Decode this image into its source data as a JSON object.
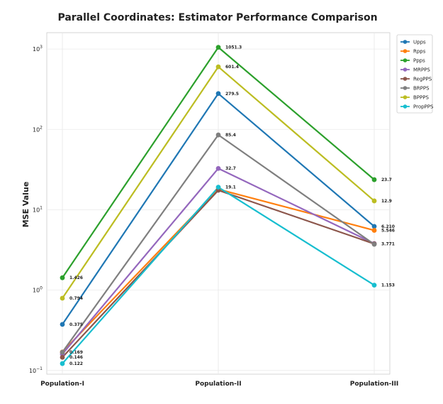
{
  "chart_data": {
    "type": "line",
    "title": "Parallel Coordinates: Estimator Performance Comparison",
    "ylabel": "MSE Value",
    "xlabel": "",
    "yscale": "log",
    "ylim": [
      0.09,
      1600
    ],
    "yticks": [
      {
        "value": 0.1,
        "base": "10",
        "exp": "−1"
      },
      {
        "value": 1,
        "base": "10",
        "exp": "0"
      },
      {
        "value": 10,
        "base": "10",
        "exp": "1"
      },
      {
        "value": 100,
        "base": "10",
        "exp": "2"
      },
      {
        "value": 1000,
        "base": "10",
        "exp": "3"
      }
    ],
    "categories": [
      "Population-I",
      "Population-II",
      "Population-III"
    ],
    "grid": true,
    "legend_position": "top-right",
    "series": [
      {
        "name": "Upps",
        "color": "#1f77b4",
        "values": [
          0.375,
          279.5,
          6.21
        ],
        "labels": [
          "0.375",
          "279.5",
          "6.210"
        ]
      },
      {
        "name": "Rpps",
        "color": "#ff7f0e",
        "values": [
          0.17,
          18.0,
          5.546
        ],
        "labels": [
          "",
          "",
          "5.546"
        ]
      },
      {
        "name": "Ppps",
        "color": "#2ca02c",
        "values": [
          1.426,
          1051.3,
          23.7
        ],
        "labels": [
          "1.426",
          "1051.3",
          "23.7"
        ]
      },
      {
        "name": "MRPPS",
        "color": "#9467bd",
        "values": [
          0.16,
          32.7,
          3.8
        ],
        "labels": [
          "",
          "32.7",
          ""
        ]
      },
      {
        "name": "RegPPS",
        "color": "#8c564b",
        "values": [
          0.146,
          17.5,
          3.771
        ],
        "labels": [
          "0.146",
          "",
          "3.771"
        ]
      },
      {
        "name": "BRPPS",
        "color": "#7f7f7f",
        "values": [
          0.169,
          85.4,
          3.72
        ],
        "labels": [
          "0.169",
          "85.4",
          ""
        ]
      },
      {
        "name": "BPPPS",
        "color": "#bcbd22",
        "values": [
          0.794,
          601.4,
          12.9
        ],
        "labels": [
          "0.794",
          "601.4",
          "12.9"
        ]
      },
      {
        "name": "PropPPS",
        "color": "#17becf",
        "values": [
          0.122,
          19.1,
          1.153
        ],
        "labels": [
          "0.122",
          "19.1",
          "1.153"
        ]
      }
    ]
  }
}
